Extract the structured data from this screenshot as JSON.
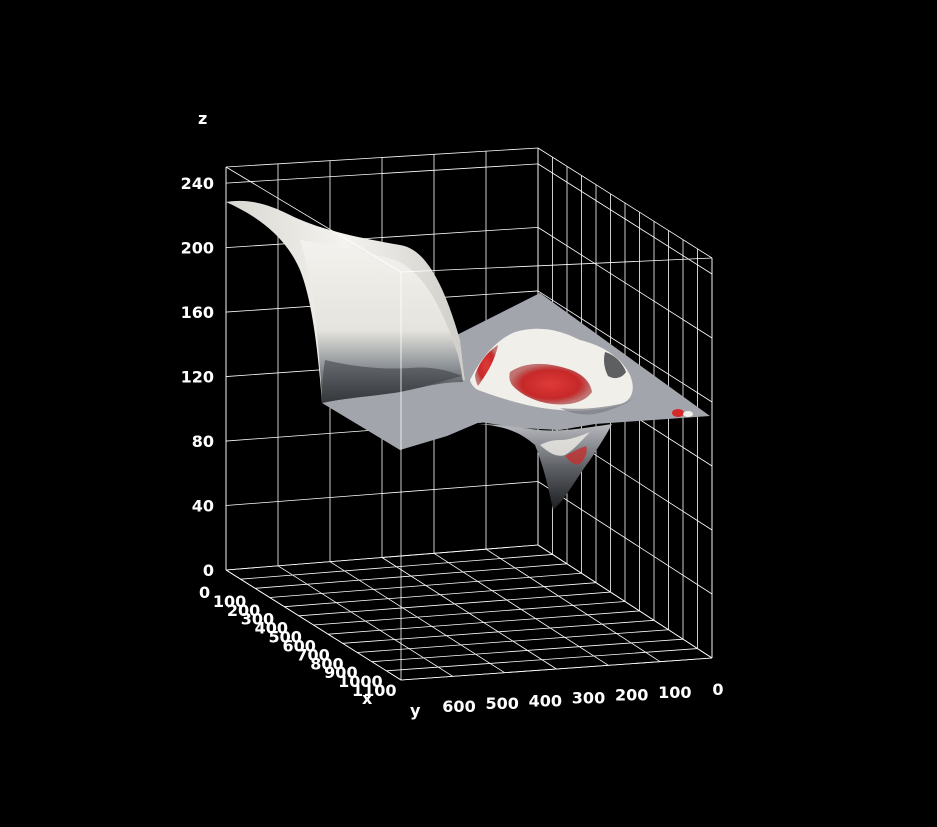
{
  "chart_data": {
    "type": "surface3d",
    "title": "",
    "axes": {
      "x": {
        "label": "x",
        "ticks": [
          0,
          100,
          200,
          300,
          400,
          500,
          600,
          700,
          800,
          900,
          1000,
          1100
        ],
        "tick_labels": [
          "0",
          "100",
          "200",
          "300",
          "400",
          "500",
          "600",
          "700",
          "800",
          "900",
          "1000",
          "1100"
        ],
        "range": [
          0,
          1100
        ]
      },
      "y": {
        "label": "y",
        "ticks": [
          600,
          500,
          400,
          300,
          200,
          100,
          0
        ],
        "tick_labels": [
          "600",
          "500",
          "400",
          "300",
          "200",
          "100",
          "0"
        ],
        "range": [
          0,
          600
        ]
      },
      "z": {
        "label": "z",
        "ticks": [
          0,
          40,
          80,
          120,
          160,
          200,
          240
        ],
        "tick_labels": [
          "0",
          "40",
          "80",
          "120",
          "160",
          "200",
          "240"
        ],
        "range": [
          0,
          240
        ]
      }
    },
    "grid": true,
    "surface": {
      "baseline_z": 96,
      "max_z": 240,
      "min_z": 28,
      "texture": "photo of a bird mapped onto the surface",
      "colors": {
        "base": "#a3a5ac",
        "light": "#f1efea",
        "dark": "#2b2f33",
        "accent": "#d52a2a"
      }
    }
  },
  "colors": {
    "background": "#000000",
    "grid": "#ffffff",
    "text": "#ffffff"
  }
}
